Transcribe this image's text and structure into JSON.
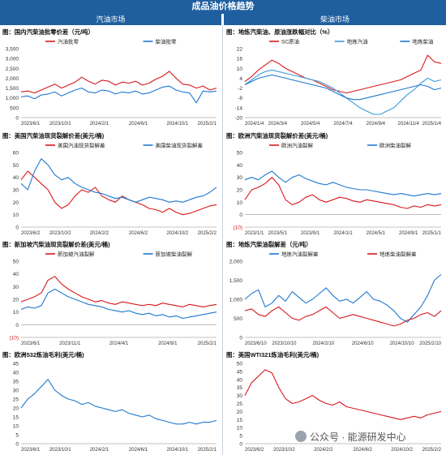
{
  "header": {
    "title": "成品油价格趋势"
  },
  "sections": {
    "left": "汽油市场",
    "right": "柴油市场"
  },
  "watermark": {
    "text": "公众号 · 能源研发中心"
  },
  "colors": {
    "red": "#d7191c",
    "blue": "#1f78d1",
    "lightblue": "#3a9be0",
    "header_bg": "#1f5f9f"
  },
  "chart_data": [
    {
      "id": "c1",
      "type": "line",
      "title": "图：国内汽柴油批零价差（元/吨）",
      "ylim": [
        0,
        3500
      ],
      "yticks": [
        0,
        500,
        1000,
        1500,
        2000,
        2500,
        3000,
        3500
      ],
      "ytick_labels": [
        "0",
        "500",
        "1,000",
        "1,500",
        "2,000",
        "2,500",
        "3,000",
        "3,500"
      ],
      "xlabels": [
        "2023/6/1",
        "2023/10/1",
        "2024/2/1",
        "2024/6/1",
        "2024/10/1",
        "2025/2/1"
      ],
      "legend_position": "top-center",
      "series": [
        {
          "name": "汽油批零",
          "color": "#d7191c",
          "values": [
            1300,
            1350,
            1250,
            1400,
            1550,
            1700,
            1500,
            1650,
            1800,
            2050,
            1850,
            1700,
            1900,
            1850,
            1650,
            1800,
            1750,
            1850,
            1650,
            1750,
            1950,
            2100,
            2350,
            2000,
            1700,
            1650,
            1500,
            1600,
            1400,
            1500
          ]
        },
        {
          "name": "柴油批零",
          "color": "#1f78d1",
          "values": [
            1050,
            1100,
            950,
            1150,
            1200,
            1300,
            1100,
            1250,
            1400,
            1500,
            1300,
            1250,
            1400,
            1350,
            1200,
            1300,
            1250,
            1350,
            1200,
            1250,
            1400,
            1550,
            1600,
            1400,
            1300,
            1250,
            750,
            1350,
            1300,
            1350
          ]
        }
      ]
    },
    {
      "id": "c2",
      "type": "line",
      "title": "图：地炼汽柴油、原油涨跌幅对比（%）",
      "ylim": [
        -20,
        22
      ],
      "yticks": [
        -20,
        -14,
        -8,
        -2,
        4,
        10,
        16,
        22
      ],
      "ytick_labels": [
        "-20",
        "-14",
        "-8",
        "-2",
        "4",
        "10",
        "16",
        "22"
      ],
      "xlabels": [
        "2024/1/4",
        "2024/3/4",
        "2024/5/4",
        "2024/7/4",
        "2024/9/4",
        "2024/11/4",
        "2025/1/4"
      ],
      "legend_position": "top-center",
      "series": [
        {
          "name": "SC原油",
          "color": "#d7191c",
          "values": [
            2,
            5,
            9,
            12,
            15,
            13,
            10,
            8,
            6,
            4,
            3,
            1,
            -1,
            -3,
            -4,
            -5,
            -4,
            -3,
            -2,
            -1,
            0,
            1,
            2,
            3,
            5,
            7,
            9,
            18,
            14,
            13
          ]
        },
        {
          "name": "地炼汽油",
          "color": "#3a9be0",
          "values": [
            0,
            3,
            6,
            8,
            9,
            8,
            7,
            6,
            5,
            4,
            3,
            2,
            0,
            -2,
            -5,
            -8,
            -11,
            -14,
            -16,
            -18,
            -18,
            -16,
            -14,
            -10,
            -6,
            -3,
            1,
            4,
            2,
            3
          ]
        },
        {
          "name": "地炼柴油",
          "color": "#1f78d1",
          "values": [
            0,
            2,
            4,
            5,
            6,
            5,
            4,
            3,
            2,
            1,
            0,
            -1,
            -2,
            -4,
            -6,
            -8,
            -9,
            -9,
            -8,
            -7,
            -6,
            -5,
            -4,
            -3,
            -2,
            -1,
            0,
            -1,
            -3,
            -2
          ]
        }
      ]
    },
    {
      "id": "c3",
      "type": "line",
      "title": "图：美国汽柴油现货裂解价差(美元/桶)",
      "ylim": [
        0,
        60
      ],
      "yticks": [
        0,
        10,
        20,
        30,
        40,
        50,
        60
      ],
      "ytick_labels": [
        "0",
        "10",
        "20",
        "30",
        "40",
        "50",
        "60"
      ],
      "xlabels": [
        "2023/6/2",
        "2023/10/2",
        "2024/2/2",
        "2024/6/2",
        "2024/10/2",
        "2025/2/2"
      ],
      "legend_position": "top-center",
      "series": [
        {
          "name": "美国汽油现货裂解差",
          "color": "#d7191c",
          "values": [
            38,
            45,
            40,
            35,
            30,
            20,
            15,
            18,
            25,
            30,
            28,
            32,
            25,
            22,
            20,
            25,
            22,
            20,
            18,
            15,
            14,
            12,
            15,
            12,
            10,
            11,
            13,
            15,
            17,
            18
          ]
        },
        {
          "name": "美国柴油现货裂解差",
          "color": "#1f78d1",
          "values": [
            35,
            30,
            45,
            55,
            50,
            42,
            38,
            40,
            35,
            32,
            30,
            28,
            27,
            25,
            23,
            24,
            22,
            20,
            22,
            24,
            23,
            22,
            20,
            21,
            20,
            22,
            24,
            25,
            28,
            32
          ]
        }
      ]
    },
    {
      "id": "c4",
      "type": "line",
      "title": "图：欧洲汽柴油现货裂解价差(美元/桶)",
      "ylim": [
        -10,
        50
      ],
      "yticks": [
        -10,
        0,
        10,
        20,
        30,
        40,
        50
      ],
      "ytick_labels": [
        "(10)",
        "0",
        "10",
        "20",
        "30",
        "40",
        "50"
      ],
      "xlabels": [
        "2023/1/1",
        "2023/5/1",
        "2023/9/1",
        "2024/1/1",
        "2024/5/1",
        "2024/9/1",
        "2025/1/1"
      ],
      "legend_position": "top-center",
      "series": [
        {
          "name": "欧洲汽油裂解",
          "color": "#d7191c",
          "values": [
            12,
            20,
            22,
            25,
            30,
            24,
            12,
            8,
            10,
            14,
            16,
            12,
            10,
            12,
            14,
            13,
            11,
            10,
            12,
            11,
            10,
            9,
            8,
            6,
            5,
            7,
            6,
            8,
            7,
            8
          ]
        },
        {
          "name": "欧洲柴油裂解",
          "color": "#1f78d1",
          "values": [
            28,
            30,
            28,
            32,
            35,
            30,
            26,
            30,
            32,
            29,
            27,
            25,
            24,
            26,
            24,
            22,
            21,
            20,
            20,
            19,
            18,
            17,
            16,
            17,
            16,
            15,
            16,
            17,
            16,
            17
          ]
        }
      ]
    },
    {
      "id": "c5",
      "type": "line",
      "title": "图：新加坡汽柴油现货裂解价差(美元/桶)",
      "ylim": [
        -10,
        50
      ],
      "yticks": [
        -10,
        0,
        10,
        20,
        30,
        40,
        50
      ],
      "ytick_labels": [
        "(10)",
        "0",
        "10",
        "20",
        "30",
        "40",
        "50"
      ],
      "xlabels": [
        "2023/6/1",
        "2023/11/1",
        "2024/4/1",
        "2024/9/1",
        "2025/2/1"
      ],
      "legend_position": "top-center",
      "series": [
        {
          "name": "新加坡汽油裂解",
          "color": "#d7191c",
          "values": [
            18,
            20,
            22,
            25,
            35,
            38,
            32,
            28,
            25,
            22,
            20,
            18,
            19,
            17,
            16,
            18,
            17,
            16,
            15,
            16,
            15,
            17,
            16,
            15,
            14,
            16,
            15,
            14,
            15,
            16
          ]
        },
        {
          "name": "新加坡柴油裂解",
          "color": "#1f78d1",
          "values": [
            12,
            14,
            13,
            15,
            25,
            28,
            25,
            22,
            20,
            18,
            16,
            15,
            14,
            12,
            11,
            10,
            11,
            9,
            8,
            9,
            7,
            8,
            6,
            7,
            5,
            6,
            7,
            8,
            9,
            10
          ]
        }
      ]
    },
    {
      "id": "c6",
      "type": "line",
      "title": "图：地炼汽柴油裂解差（元/吨）",
      "ylim": [
        0,
        2000
      ],
      "yticks": [
        0,
        500,
        1000,
        1500,
        2000
      ],
      "ytick_labels": [
        "0",
        "500",
        "1,000",
        "1,500",
        "2,000"
      ],
      "xlabels": [
        "2023/6/10",
        "2023/10/10",
        "2024/2/10",
        "2024/6/10",
        "2024/10/10",
        "2025/2/10"
      ],
      "legend_position": "top-center",
      "series": [
        {
          "name": "地炼汽油裂解差",
          "color": "#1f78d1",
          "values": [
            1000,
            1150,
            1250,
            800,
            900,
            1100,
            950,
            1200,
            1050,
            900,
            1000,
            1150,
            1300,
            1100,
            950,
            1000,
            900,
            1050,
            1200,
            1000,
            950,
            850,
            700,
            500,
            400,
            600,
            800,
            1100,
            1500,
            1650
          ]
        },
        {
          "name": "地炼柴油裂解差",
          "color": "#d7191c",
          "values": [
            700,
            750,
            600,
            550,
            700,
            800,
            650,
            500,
            450,
            550,
            600,
            700,
            800,
            650,
            500,
            550,
            600,
            550,
            500,
            450,
            400,
            350,
            300,
            350,
            450,
            500,
            600,
            650,
            550,
            700
          ]
        }
      ]
    },
    {
      "id": "c7",
      "type": "line",
      "title": "图：欧洲532炼油毛利(美元/桶)",
      "ylim": [
        0,
        45
      ],
      "yticks": [
        0,
        5,
        10,
        15,
        20,
        25,
        30,
        35,
        40,
        45
      ],
      "ytick_labels": [
        "0",
        "5",
        "10",
        "15",
        "20",
        "25",
        "30",
        "35",
        "40",
        "45"
      ],
      "xlabels": [
        "2023/6/1",
        "2023/10/1",
        "2024/2/1",
        "2024/6/1",
        "2024/10/1",
        "2025/2/1"
      ],
      "legend_position": "none",
      "series": [
        {
          "name": "",
          "color": "#1f78d1",
          "values": [
            20,
            25,
            28,
            32,
            36,
            30,
            27,
            25,
            24,
            22,
            23,
            21,
            20,
            19,
            18,
            19,
            17,
            16,
            15,
            16,
            14,
            13,
            12,
            11,
            11,
            12,
            11,
            12,
            12,
            13
          ]
        }
      ]
    },
    {
      "id": "c8",
      "type": "line",
      "title": "图：美国WTI321炼油毛利(美元/桶)",
      "ylim": [
        0,
        50
      ],
      "yticks": [
        0,
        5,
        10,
        15,
        20,
        25,
        30,
        35,
        40,
        45,
        50
      ],
      "ytick_labels": [
        "0",
        "5",
        "10",
        "15",
        "20",
        "25",
        "30",
        "35",
        "40",
        "45",
        "50"
      ],
      "xlabels": [
        "2023/6/2",
        "2023/10/2",
        "2024/2/2",
        "2024/6/2",
        "2024/10/2",
        "2025/2/2"
      ],
      "legend_position": "none",
      "series": [
        {
          "name": "",
          "color": "#d7191c",
          "values": [
            30,
            38,
            42,
            46,
            44,
            35,
            28,
            25,
            26,
            28,
            30,
            27,
            25,
            24,
            26,
            23,
            22,
            21,
            20,
            19,
            18,
            17,
            16,
            15,
            16,
            17,
            16,
            18,
            19,
            20
          ]
        }
      ]
    }
  ]
}
